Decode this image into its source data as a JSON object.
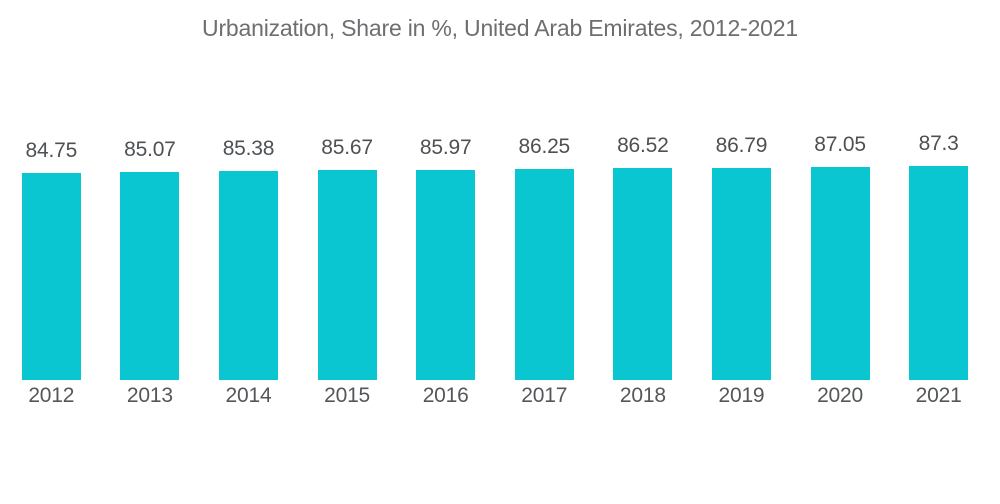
{
  "chart_data": {
    "type": "bar",
    "title": "Urbanization, Share in %, United Arab Emirates, 2012-2021",
    "categories": [
      "2012",
      "2013",
      "2014",
      "2015",
      "2016",
      "2017",
      "2018",
      "2019",
      "2020",
      "2021"
    ],
    "values": [
      84.75,
      85.07,
      85.38,
      85.67,
      85.97,
      86.25,
      86.52,
      86.79,
      87.05,
      87.3
    ],
    "value_labels": [
      "84.75",
      "85.07",
      "85.38",
      "85.67",
      "85.97",
      "86.25",
      "86.52",
      "86.79",
      "87.05",
      "87.3"
    ],
    "xlabel": "",
    "ylabel": "",
    "ylim": [
      0,
      87.3
    ],
    "grid": false,
    "legend": false,
    "axes_visible": false,
    "data_labels_position": "above-bar",
    "bar_color": "#0ac6d1",
    "value_label_color": "#4e5154",
    "tick_label_color": "#54575a",
    "title_color": "#6d6e71",
    "background_color": "#ffffff"
  }
}
